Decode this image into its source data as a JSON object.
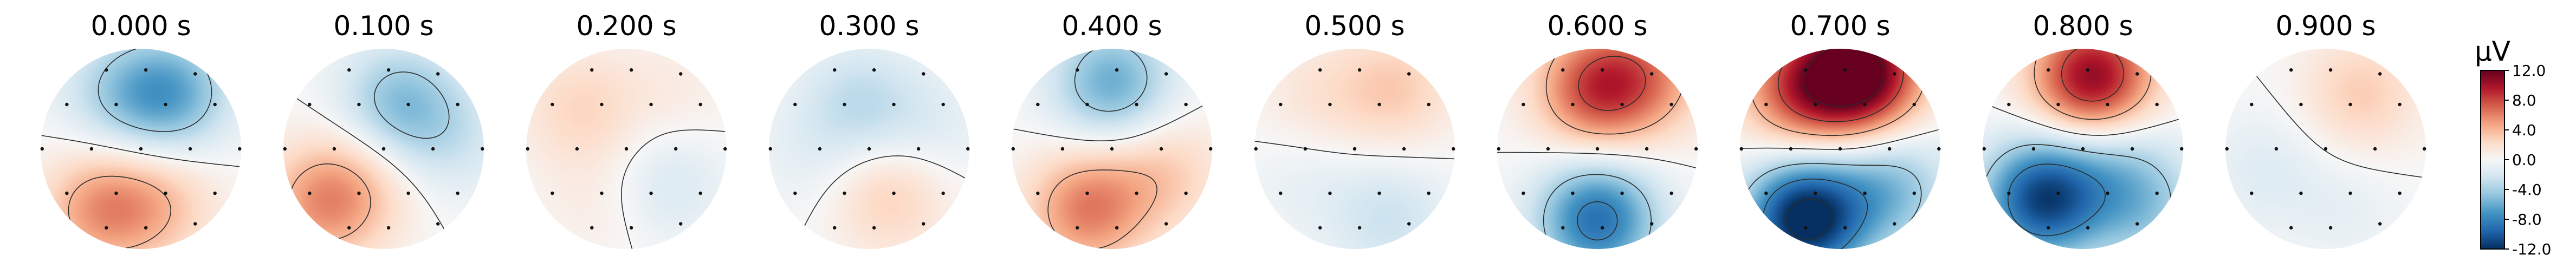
{
  "chart_data": {
    "type": "heatmap",
    "subtype": "eeg-topomap-series",
    "colormap": "RdBu_r",
    "colorbar": {
      "unit": "µV",
      "range": [
        -12.0,
        12.0
      ],
      "ticks": [
        "12.0",
        "8.0",
        "4.0",
        "0.0",
        "-4.0",
        "-8.0",
        "-12.0"
      ]
    },
    "sensor_layout": [
      [
        -0.35,
        0.8
      ],
      [
        0.05,
        0.8
      ],
      [
        0.55,
        0.76
      ],
      [
        -0.75,
        0.45
      ],
      [
        -0.25,
        0.45
      ],
      [
        0.25,
        0.45
      ],
      [
        0.75,
        0.45
      ],
      [
        -1.0,
        0.0
      ],
      [
        -0.5,
        0.0
      ],
      [
        0.0,
        0.0
      ],
      [
        0.5,
        0.0
      ],
      [
        1.0,
        0.0
      ],
      [
        -0.75,
        -0.45
      ],
      [
        -0.25,
        -0.45
      ],
      [
        0.25,
        -0.45
      ],
      [
        0.75,
        -0.45
      ],
      [
        -0.35,
        -0.8
      ],
      [
        0.05,
        -0.8
      ],
      [
        0.55,
        -0.76
      ]
    ],
    "maps": [
      {
        "title": "0.000 s",
        "sources": [
          [
            0.3,
            0.55,
            -6
          ],
          [
            -0.25,
            0.55,
            -3
          ],
          [
            -0.4,
            -0.6,
            5
          ],
          [
            0.2,
            -0.55,
            3
          ]
        ]
      },
      {
        "title": "0.100 s",
        "sources": [
          [
            0.15,
            0.45,
            -5
          ],
          [
            0.7,
            0.1,
            -2
          ],
          [
            -0.6,
            -0.55,
            5
          ],
          [
            -0.2,
            -0.3,
            2
          ]
        ]
      },
      {
        "title": "0.200 s",
        "sources": [
          [
            -0.45,
            0.4,
            2.5
          ],
          [
            0.4,
            -0.35,
            -2
          ],
          [
            0.5,
            0.55,
            1
          ],
          [
            -0.25,
            -0.55,
            1
          ]
        ]
      },
      {
        "title": "0.300 s",
        "sources": [
          [
            -0.1,
            0.45,
            -3
          ],
          [
            0.2,
            -0.45,
            3
          ],
          [
            -0.6,
            -0.1,
            -1
          ],
          [
            0.6,
            0.2,
            -1.5
          ]
        ]
      },
      {
        "title": "0.400 s",
        "sources": [
          [
            0.0,
            0.65,
            -6
          ],
          [
            -0.25,
            -0.6,
            6
          ],
          [
            0.5,
            -0.25,
            3
          ]
        ]
      },
      {
        "title": "0.500 s",
        "sources": [
          [
            0.4,
            0.6,
            3
          ],
          [
            -0.4,
            0.5,
            1.5
          ],
          [
            0.35,
            -0.7,
            -2.5
          ],
          [
            -0.5,
            -0.3,
            -1
          ]
        ]
      },
      {
        "title": "0.600 s",
        "sources": [
          [
            0.0,
            0.6,
            8
          ],
          [
            0.55,
            0.75,
            4
          ],
          [
            0.0,
            -0.7,
            -9
          ]
        ]
      },
      {
        "title": "0.700 s",
        "sources": [
          [
            0.2,
            0.75,
            13
          ],
          [
            -0.4,
            0.6,
            7
          ],
          [
            -0.35,
            -0.7,
            -13
          ],
          [
            0.5,
            -0.4,
            -5
          ]
        ]
      },
      {
        "title": "0.800 s",
        "sources": [
          [
            0.1,
            0.7,
            11
          ],
          [
            -0.4,
            -0.5,
            -11
          ],
          [
            0.3,
            -0.1,
            -3
          ],
          [
            0.6,
            -0.6,
            -4
          ]
        ]
      },
      {
        "title": "0.900 s",
        "sources": [
          [
            0.35,
            0.55,
            3
          ],
          [
            -0.6,
            -0.2,
            -1.5
          ],
          [
            0.2,
            -0.6,
            -1
          ]
        ]
      }
    ]
  }
}
